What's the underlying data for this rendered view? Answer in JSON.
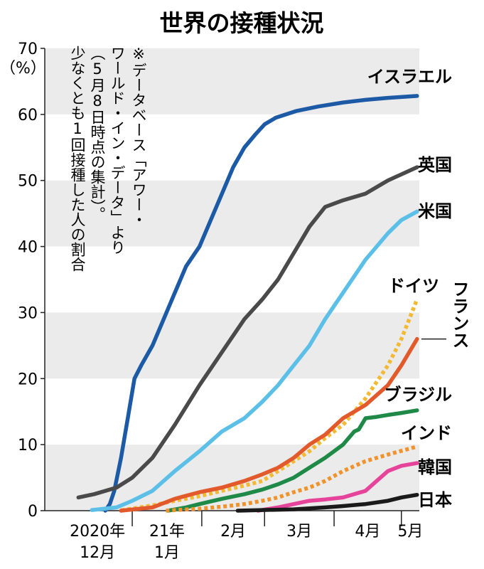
{
  "title": "世界の接種状況",
  "unit": "（%）",
  "note_lines": [
    "※データベース「アワー・",
    "ワールド・イン・データ」より",
    "（5月8日時点の集計）。",
    "少なくとも1回接種した人の割合"
  ],
  "chart_data": {
    "type": "line",
    "title": "世界の接種状況",
    "ylabel": "（%）",
    "xlabel": "",
    "ylim": [
      0,
      70
    ],
    "yticks": [
      "0",
      "10",
      "20",
      "30",
      "40",
      "50",
      "60",
      "70"
    ],
    "grid": "horizontal bands",
    "x_tick_labels": [
      {
        "text": "2020年\n12月",
        "start": "2020-12-01"
      },
      {
        "text": "21年\n1月",
        "start": "2021-01-01"
      },
      {
        "text": "2月",
        "start": "2021-02-01"
      },
      {
        "text": "3月",
        "start": "2021-03-01"
      },
      {
        "text": "4月",
        "start": "2021-04-01"
      },
      {
        "text": "5月",
        "start": "2021-05-01"
      }
    ],
    "series": [
      {
        "name": "イスラエル",
        "color": "#1d5aa6",
        "dash": "solid",
        "points": [
          [
            "2020-12-20",
            0
          ],
          [
            "2020-12-22",
            1
          ],
          [
            "2020-12-24",
            3
          ],
          [
            "2020-12-27",
            8
          ],
          [
            "2020-12-30",
            14
          ],
          [
            "2021-01-02",
            20
          ],
          [
            "2021-01-05",
            22
          ],
          [
            "2021-01-10",
            25
          ],
          [
            "2021-01-15",
            29
          ],
          [
            "2021-01-20",
            33
          ],
          [
            "2021-01-25",
            37
          ],
          [
            "2021-01-31",
            40
          ],
          [
            "2021-02-05",
            44
          ],
          [
            "2021-02-10",
            48
          ],
          [
            "2021-02-15",
            52
          ],
          [
            "2021-02-20",
            55
          ],
          [
            "2021-02-25",
            57
          ],
          [
            "2021-03-01",
            58.5
          ],
          [
            "2021-03-06",
            59.5
          ],
          [
            "2021-03-15",
            60.5
          ],
          [
            "2021-03-25",
            61.2
          ],
          [
            "2021-04-05",
            61.8
          ],
          [
            "2021-04-15",
            62.2
          ],
          [
            "2021-04-25",
            62.5
          ],
          [
            "2021-05-08",
            62.8
          ]
        ]
      },
      {
        "name": "英国",
        "color": "#4a4a4a",
        "dash": "solid",
        "points": [
          [
            "2020-12-08",
            2
          ],
          [
            "2020-12-15",
            2.5
          ],
          [
            "2020-12-25",
            3.5
          ],
          [
            "2021-01-01",
            5
          ],
          [
            "2021-01-10",
            8
          ],
          [
            "2021-01-20",
            13
          ],
          [
            "2021-01-31",
            19
          ],
          [
            "2021-02-10",
            24
          ],
          [
            "2021-02-20",
            29
          ],
          [
            "2021-02-28",
            32
          ],
          [
            "2021-03-07",
            35
          ],
          [
            "2021-03-14",
            39
          ],
          [
            "2021-03-21",
            43
          ],
          [
            "2021-03-28",
            46
          ],
          [
            "2021-04-05",
            47
          ],
          [
            "2021-04-15",
            48
          ],
          [
            "2021-04-25",
            50
          ],
          [
            "2021-05-08",
            52
          ]
        ]
      },
      {
        "name": "米国",
        "color": "#5bbfe8",
        "dash": "solid",
        "points": [
          [
            "2020-12-14",
            0.1
          ],
          [
            "2020-12-25",
            0.5
          ],
          [
            "2021-01-01",
            1.5
          ],
          [
            "2021-01-10",
            3
          ],
          [
            "2021-01-20",
            6
          ],
          [
            "2021-01-31",
            9
          ],
          [
            "2021-02-10",
            12
          ],
          [
            "2021-02-20",
            14
          ],
          [
            "2021-02-28",
            16.5
          ],
          [
            "2021-03-07",
            19
          ],
          [
            "2021-03-14",
            22
          ],
          [
            "2021-03-21",
            25
          ],
          [
            "2021-03-28",
            29
          ],
          [
            "2021-04-05",
            33
          ],
          [
            "2021-04-15",
            38
          ],
          [
            "2021-04-25",
            42
          ],
          [
            "2021-05-01",
            44
          ],
          [
            "2021-05-08",
            45.3
          ]
        ]
      },
      {
        "name": "ドイツ",
        "color": "#f2b933",
        "dash": "dotted",
        "points": [
          [
            "2020-12-27",
            0.05
          ],
          [
            "2021-01-10",
            0.8
          ],
          [
            "2021-01-20",
            1.5
          ],
          [
            "2021-01-31",
            2.2
          ],
          [
            "2021-02-10",
            3
          ],
          [
            "2021-02-20",
            3.8
          ],
          [
            "2021-02-28",
            4.5
          ],
          [
            "2021-03-07",
            6
          ],
          [
            "2021-03-14",
            7.5
          ],
          [
            "2021-03-21",
            9
          ],
          [
            "2021-03-28",
            11
          ],
          [
            "2021-04-05",
            13
          ],
          [
            "2021-04-15",
            17
          ],
          [
            "2021-04-25",
            22
          ],
          [
            "2021-05-01",
            26
          ],
          [
            "2021-05-08",
            32
          ]
        ]
      },
      {
        "name": "フランス",
        "color": "#e25a2c",
        "dash": "solid",
        "points": [
          [
            "2020-12-27",
            0
          ],
          [
            "2021-01-10",
            0.5
          ],
          [
            "2021-01-20",
            1.8
          ],
          [
            "2021-01-31",
            2.8
          ],
          [
            "2021-02-10",
            3.5
          ],
          [
            "2021-02-20",
            4.5
          ],
          [
            "2021-02-28",
            5.5
          ],
          [
            "2021-03-07",
            6.5
          ],
          [
            "2021-03-14",
            8
          ],
          [
            "2021-03-21",
            10
          ],
          [
            "2021-03-28",
            11.5
          ],
          [
            "2021-04-05",
            14
          ],
          [
            "2021-04-15",
            16
          ],
          [
            "2021-04-25",
            19
          ],
          [
            "2021-05-01",
            22
          ],
          [
            "2021-05-08",
            26
          ]
        ]
      },
      {
        "name": "ブラジル",
        "color": "#1f8a47",
        "dash": "solid",
        "points": [
          [
            "2021-01-17",
            0
          ],
          [
            "2021-01-25",
            0.5
          ],
          [
            "2021-01-31",
            1
          ],
          [
            "2021-02-10",
            1.8
          ],
          [
            "2021-02-20",
            2.5
          ],
          [
            "2021-02-28",
            3.2
          ],
          [
            "2021-03-07",
            4
          ],
          [
            "2021-03-14",
            5
          ],
          [
            "2021-03-21",
            6.5
          ],
          [
            "2021-03-28",
            8
          ],
          [
            "2021-04-05",
            10
          ],
          [
            "2021-04-10",
            12
          ],
          [
            "2021-04-12",
            12.3
          ],
          [
            "2021-04-15",
            14
          ],
          [
            "2021-04-20",
            14.2
          ],
          [
            "2021-04-25",
            14.5
          ],
          [
            "2021-05-01",
            14.8
          ],
          [
            "2021-05-08",
            15.2
          ]
        ]
      },
      {
        "name": "インド",
        "color": "#f0932d",
        "dash": "dotted",
        "points": [
          [
            "2021-01-16",
            0
          ],
          [
            "2021-01-31",
            0.3
          ],
          [
            "2021-02-10",
            0.6
          ],
          [
            "2021-02-20",
            1
          ],
          [
            "2021-02-28",
            1.5
          ],
          [
            "2021-03-07",
            2
          ],
          [
            "2021-03-14",
            2.8
          ],
          [
            "2021-03-21",
            3.5
          ],
          [
            "2021-03-28",
            4.5
          ],
          [
            "2021-04-05",
            6
          ],
          [
            "2021-04-15",
            7.5
          ],
          [
            "2021-04-25",
            8.5
          ],
          [
            "2021-05-08",
            9.7
          ]
        ]
      },
      {
        "name": "韓国",
        "color": "#e6449a",
        "dash": "solid",
        "points": [
          [
            "2021-02-26",
            0
          ],
          [
            "2021-03-07",
            0.5
          ],
          [
            "2021-03-14",
            1
          ],
          [
            "2021-03-21",
            1.5
          ],
          [
            "2021-03-28",
            1.7
          ],
          [
            "2021-04-05",
            2
          ],
          [
            "2021-04-15",
            3
          ],
          [
            "2021-04-20",
            4.5
          ],
          [
            "2021-04-25",
            6
          ],
          [
            "2021-05-01",
            6.8
          ],
          [
            "2021-05-08",
            7.2
          ]
        ]
      },
      {
        "name": "日本",
        "color": "#1a1a1a",
        "dash": "solid",
        "points": [
          [
            "2021-02-17",
            0
          ],
          [
            "2021-02-28",
            0.1
          ],
          [
            "2021-03-14",
            0.2
          ],
          [
            "2021-03-28",
            0.5
          ],
          [
            "2021-04-05",
            0.7
          ],
          [
            "2021-04-15",
            1
          ],
          [
            "2021-04-25",
            1.5
          ],
          [
            "2021-05-01",
            2
          ],
          [
            "2021-05-08",
            2.4
          ]
        ]
      }
    ]
  }
}
